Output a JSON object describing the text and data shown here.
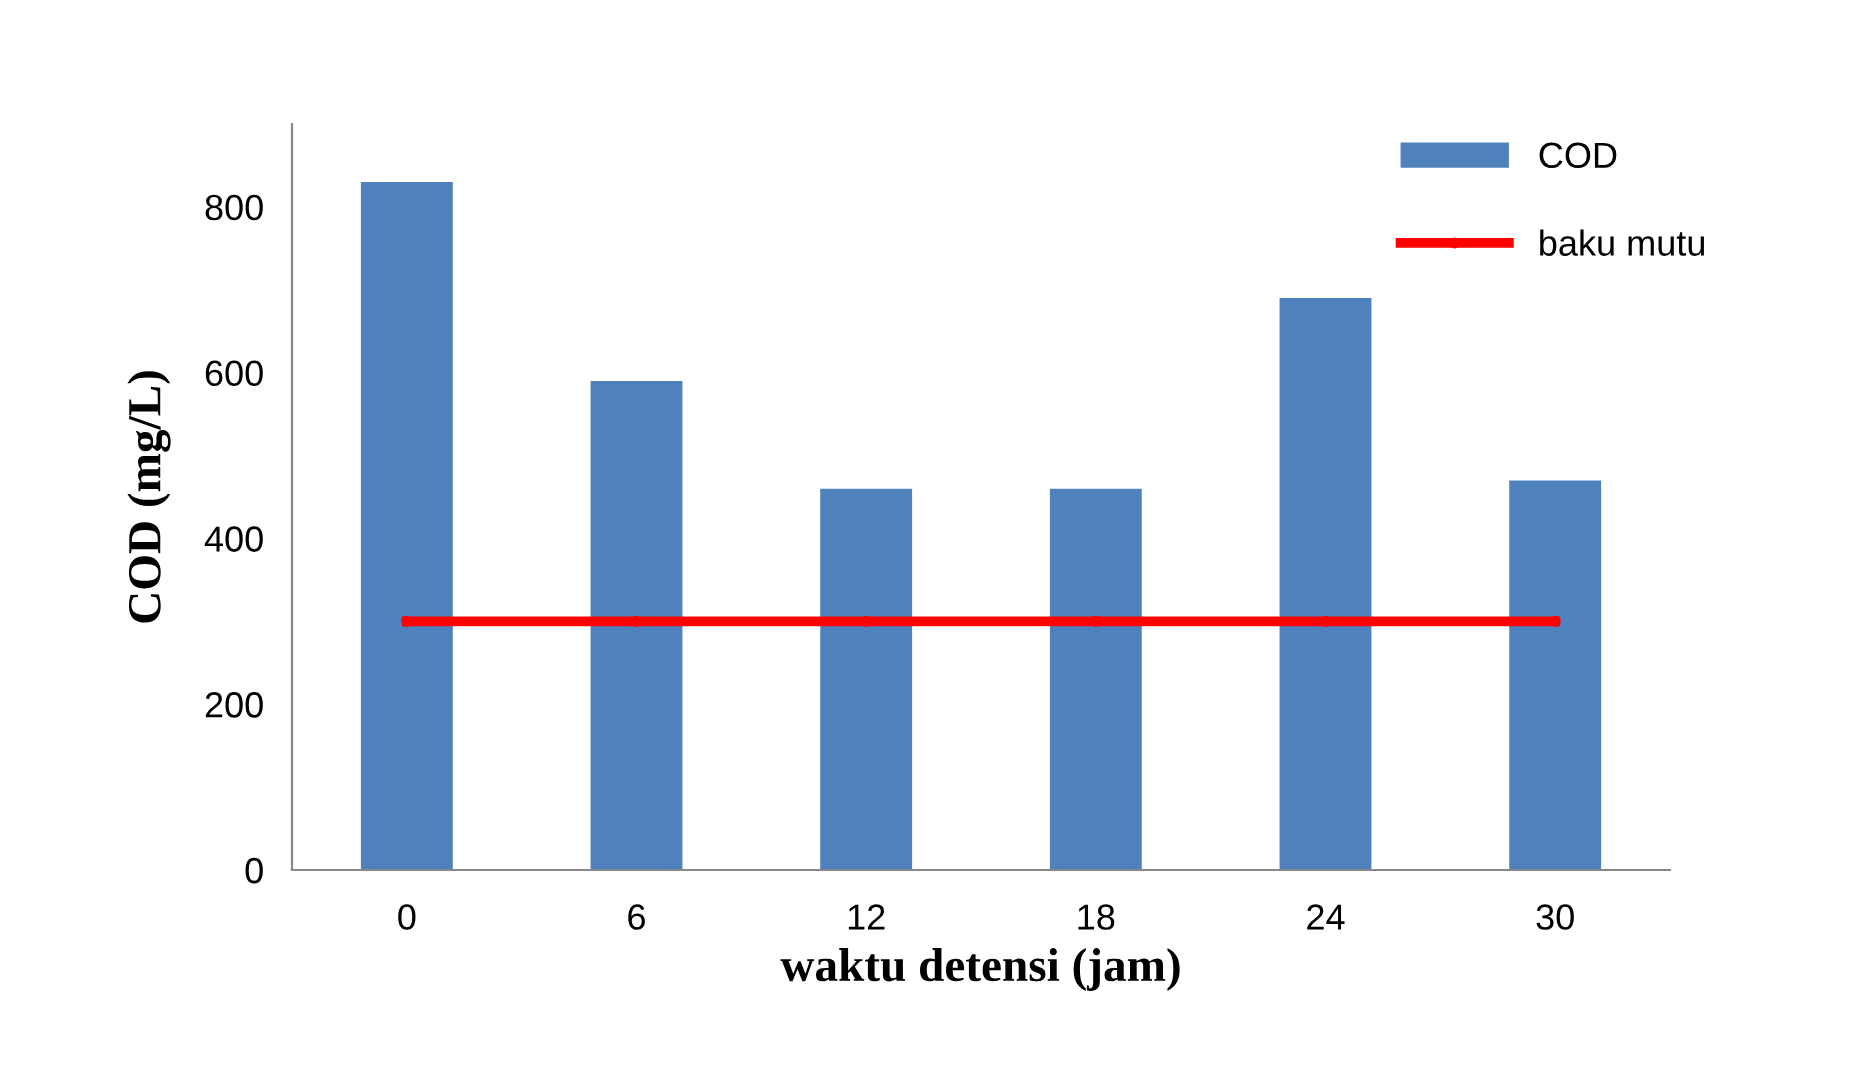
{
  "chart_data": {
    "type": "bar",
    "categories": [
      "0",
      "6",
      "12",
      "18",
      "24",
      "30"
    ],
    "series": [
      {
        "name": "COD",
        "color": "#4f81bd",
        "values": [
          830,
          590,
          460,
          460,
          690,
          470
        ]
      },
      {
        "name": "baku mutu",
        "type": "line",
        "color": "#ff0000",
        "values": [
          300,
          300,
          300,
          300,
          300,
          300
        ],
        "marker": "circle"
      }
    ],
    "xlabel": "waktu detensi (jam)",
    "ylabel": "COD (mg/L)",
    "ylim": [
      0,
      900
    ],
    "yticks": [
      0,
      200,
      400,
      600,
      800
    ],
    "grid": false,
    "legend": "top right"
  }
}
